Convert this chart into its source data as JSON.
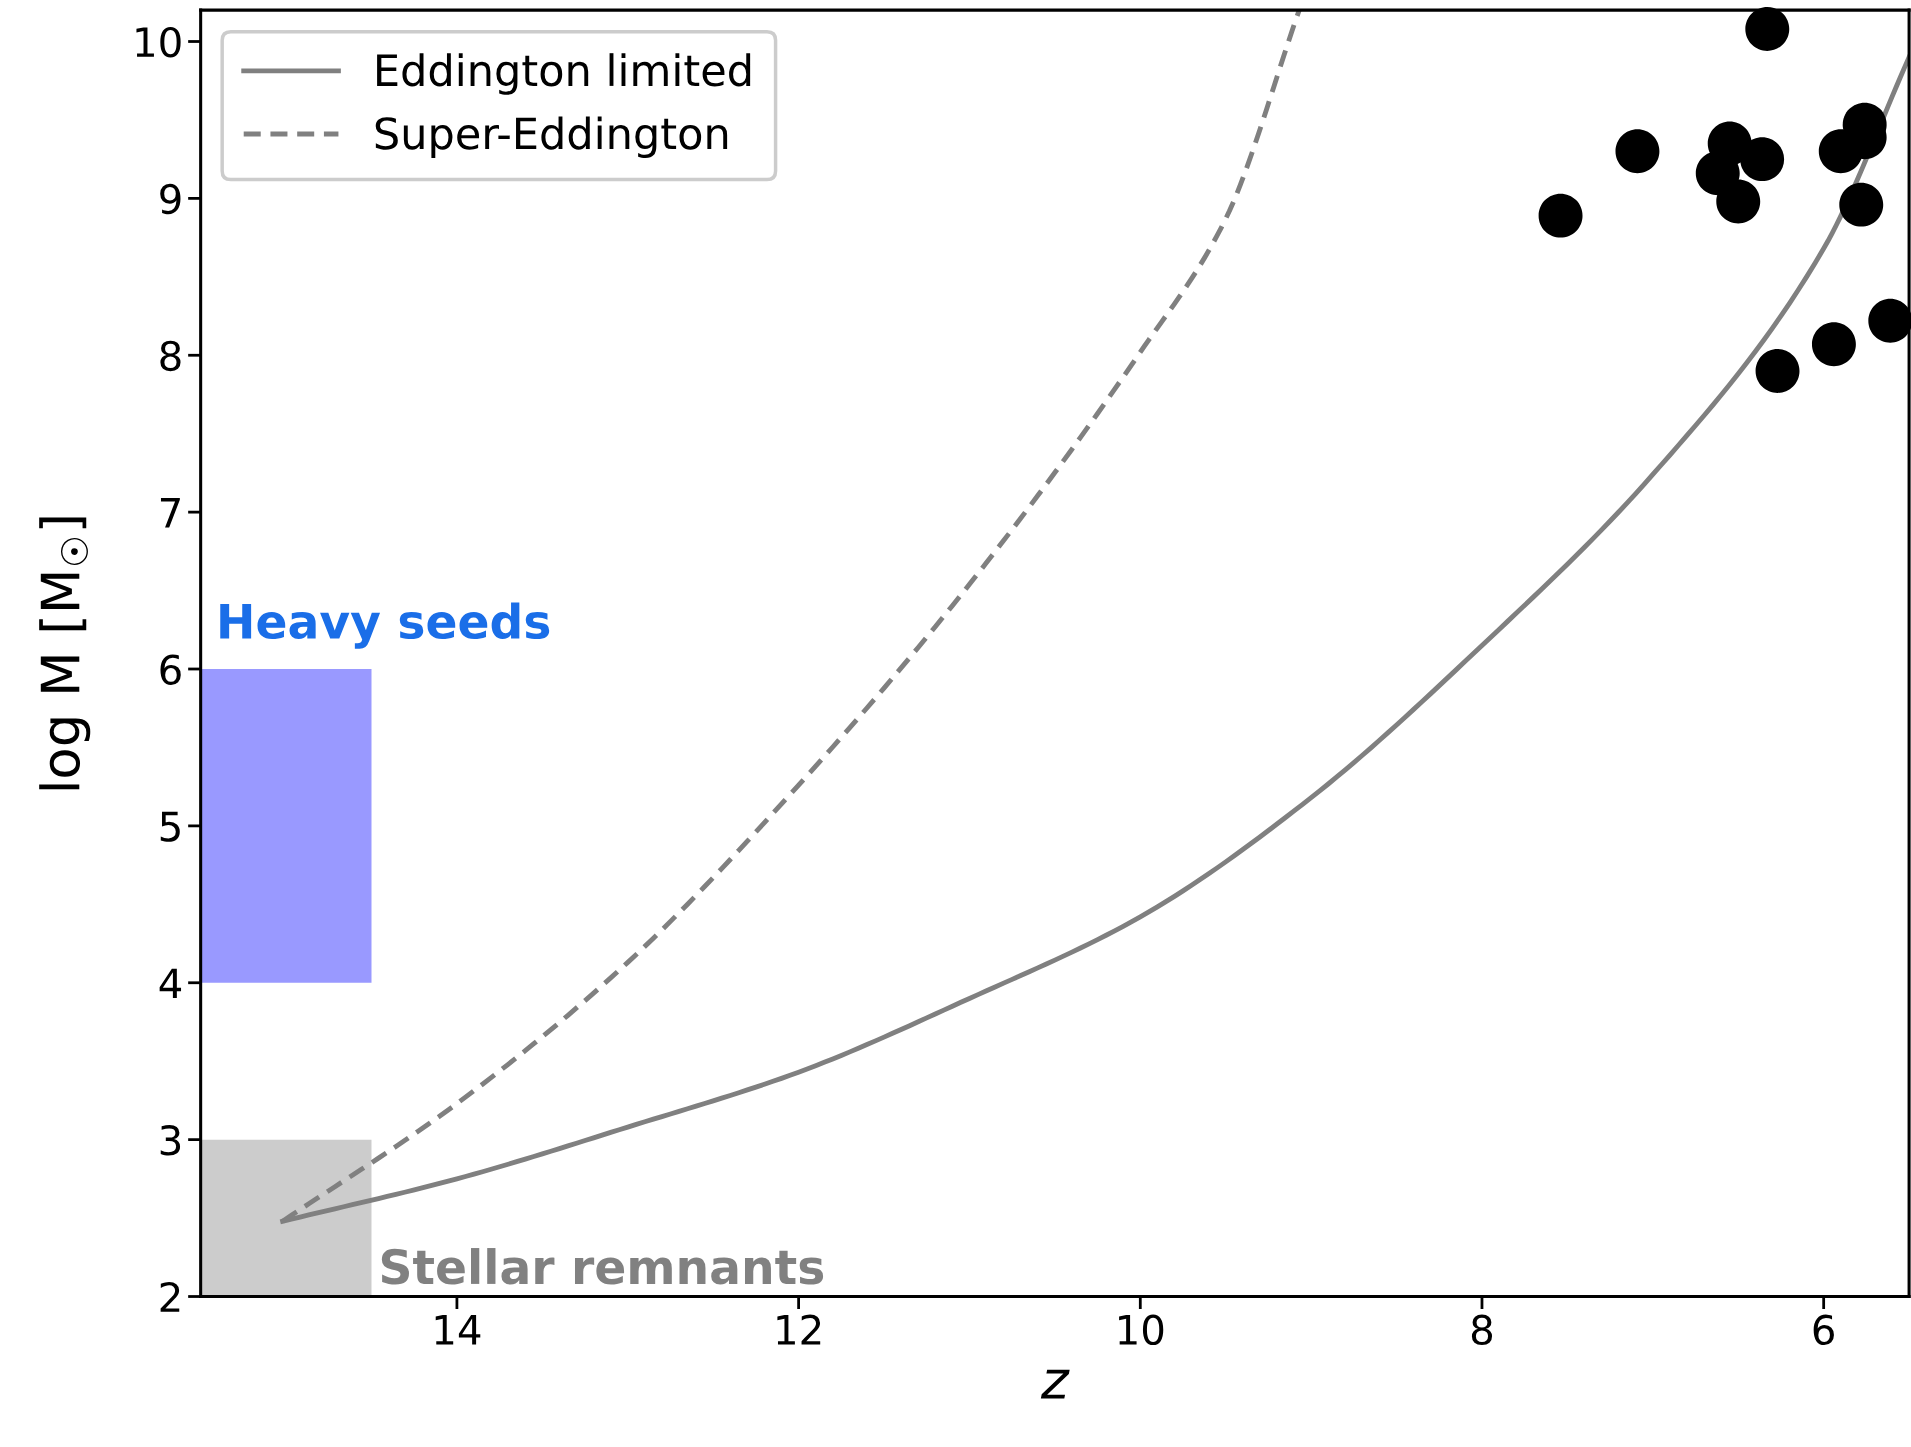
{
  "chart_data": {
    "type": "scatter",
    "xlabel": "z",
    "ylabel": "log M [M$_{☉}$]",
    "xlim": [
      15.5,
      5.5
    ],
    "ylim": [
      2,
      10.2
    ],
    "xticks": [
      14,
      12,
      10,
      8,
      6
    ],
    "yticks": [
      2,
      3,
      4,
      5,
      6,
      7,
      8,
      9,
      10
    ],
    "grid": false,
    "legend": "top left",
    "series": [
      {
        "type": "bar",
        "color": "#9999ff",
        "x": [
          15.0
        ],
        "base": [
          4
        ],
        "values": [
          2
        ]
      },
      {
        "type": "bar",
        "color": "#cccccc",
        "x": [
          15.0
        ],
        "base": [
          2
        ],
        "values": [
          1
        ]
      },
      {
        "type": "line",
        "name": "Eddington limited",
        "color": "#808080",
        "line_style": "solid",
        "x": [
          15.02,
          14,
          13,
          12,
          11,
          10,
          9,
          8,
          7,
          6,
          5.5
        ],
        "values": [
          2.48,
          2.75,
          3.08,
          3.43,
          3.9,
          4.42,
          5.18,
          6.15,
          7.24,
          8.68,
          9.9
        ]
      },
      {
        "type": "line",
        "name": "Super-Eddington",
        "color": "#808080",
        "line_style": "dashed",
        "x": [
          15.02,
          14,
          13,
          12,
          11,
          10,
          9.5,
          9.07
        ],
        "values": [
          2.48,
          3.23,
          4.13,
          5.26,
          6.54,
          8.02,
          8.87,
          10.2
        ]
      },
      {
        "color": "#000000",
        "marker": "circle",
        "x": [
          6.33,
          7.09,
          7.54,
          6.55,
          6.62,
          6.36,
          6.5,
          5.76,
          5.76,
          5.9,
          5.78,
          5.61,
          5.94,
          6.27
        ],
        "values": [
          10.08,
          9.3,
          8.89,
          9.35,
          9.16,
          9.25,
          8.98,
          9.47,
          9.39,
          9.3,
          8.96,
          8.22,
          8.07,
          7.9
        ]
      }
    ],
    "annotations": [
      "Heavy seeds",
      "Stellar remnants"
    ]
  }
}
